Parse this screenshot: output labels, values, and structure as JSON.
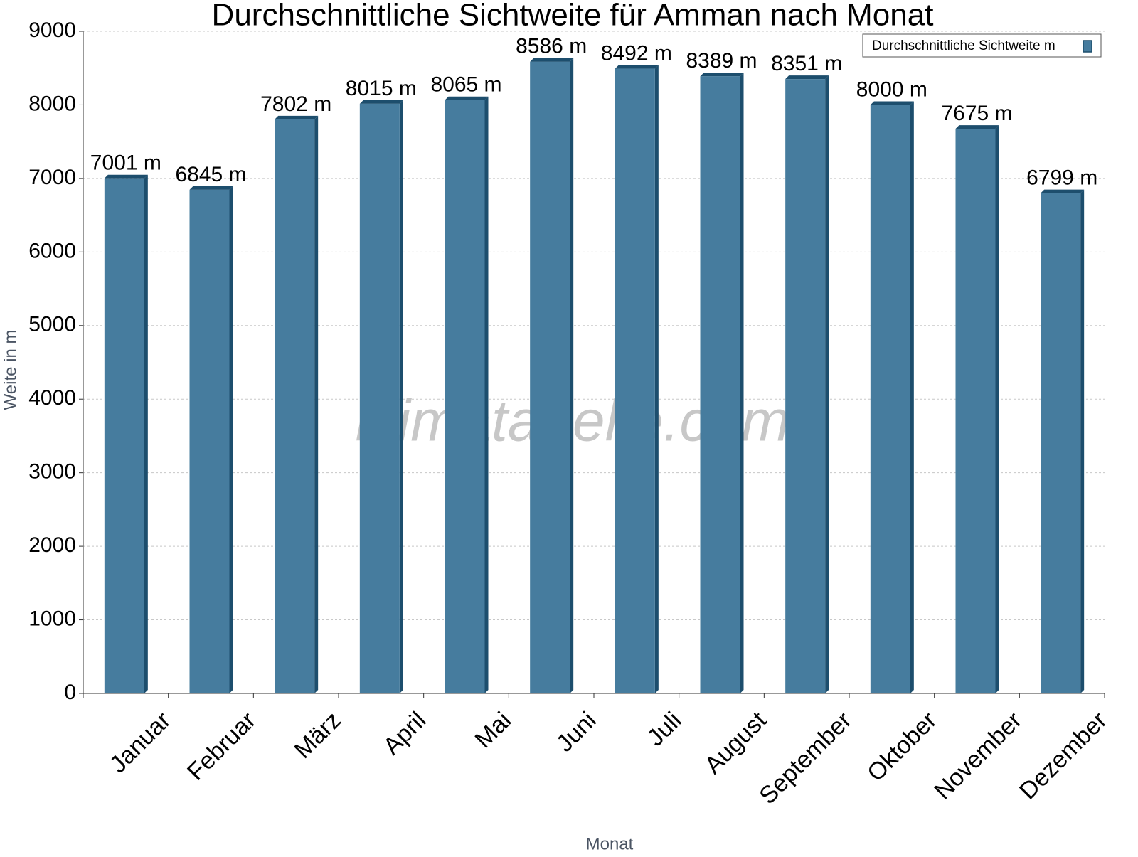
{
  "chart_data": {
    "type": "bar",
    "title": "Durchschnittliche Sichtweite für Amman nach Monat",
    "x_label": "Monat",
    "y_label": "Weite in m",
    "watermark": "klimatabelle.com",
    "categories": [
      "Januar",
      "Februar",
      "März",
      "April",
      "Mai",
      "Juni",
      "Juli",
      "August",
      "September",
      "Oktober",
      "November",
      "Dezember"
    ],
    "series": [
      {
        "name": "Durchschnittliche Sichtweite m",
        "color": "#467c9e",
        "values": [
          7001,
          6845,
          7802,
          8015,
          8065,
          8586,
          8492,
          8389,
          8351,
          8000,
          7675,
          6799
        ],
        "value_labels": [
          "7001 m",
          "6845 m",
          "7802 m",
          "8015 m",
          "8065 m",
          "8586 m",
          "8492 m",
          "8389 m",
          "8351 m",
          "8000 m",
          "7675 m",
          "6799 m"
        ]
      }
    ],
    "ylim": [
      0,
      9000
    ],
    "yticks": [
      0,
      1000,
      2000,
      3000,
      4000,
      5000,
      6000,
      7000,
      8000,
      9000
    ],
    "grid": true,
    "legend": "top-right"
  }
}
